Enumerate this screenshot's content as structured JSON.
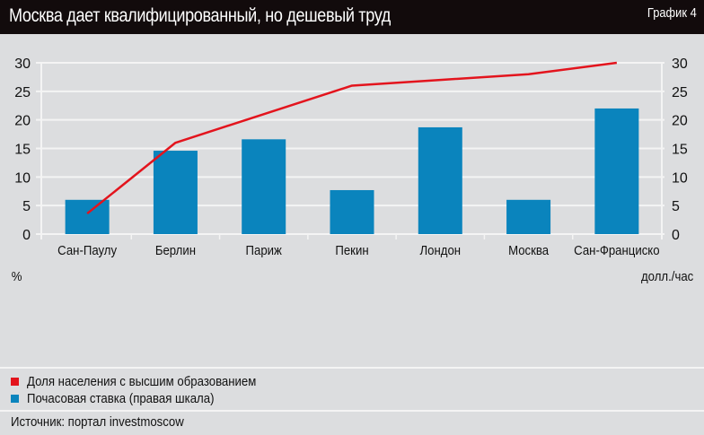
{
  "header": {
    "title": "Москва дает квалифицированный, но дешевый труд",
    "badge": "График 4"
  },
  "units": {
    "left": "%",
    "right": "долл./час"
  },
  "legend": {
    "items": [
      {
        "label": "Доля населения с высшим образованием",
        "color": "#e3141d"
      },
      {
        "label": "Почасовая ставка (правая шкала)",
        "color": "#0a84bd"
      }
    ]
  },
  "source": "Источник: портал investmoscow",
  "colors": {
    "background": "#dcdddf",
    "header": "#120b0c",
    "bar": "#0a84bd",
    "line": "#e3141d",
    "grid": "#f4f4f4"
  },
  "chart_data": {
    "type": "bar",
    "title": "Москва дает квалифицированный, но дешевый труд",
    "categories": [
      "Сан-Паулу",
      "Берлин",
      "Париж",
      "Пекин",
      "Лондон",
      "Москва",
      "Сан-Франциско"
    ],
    "series": [
      {
        "name": "Доля населения с высшим образованием",
        "type": "line",
        "axis": "left",
        "unit": "%",
        "values": [
          3.6,
          16,
          21,
          26,
          27,
          28,
          30
        ]
      },
      {
        "name": "Почасовая ставка (правая шкала)",
        "type": "bar",
        "axis": "right",
        "unit": "долл./час",
        "values": [
          6,
          14.6,
          16.6,
          7.7,
          18.7,
          6,
          22
        ]
      }
    ],
    "ylim": [
      0,
      30
    ],
    "yticks": [
      0,
      5,
      10,
      15,
      20,
      25,
      30
    ],
    "ylabel_left": "%",
    "ylabel_right": "долл./час",
    "grid": true,
    "legend_position": "bottom-left"
  }
}
